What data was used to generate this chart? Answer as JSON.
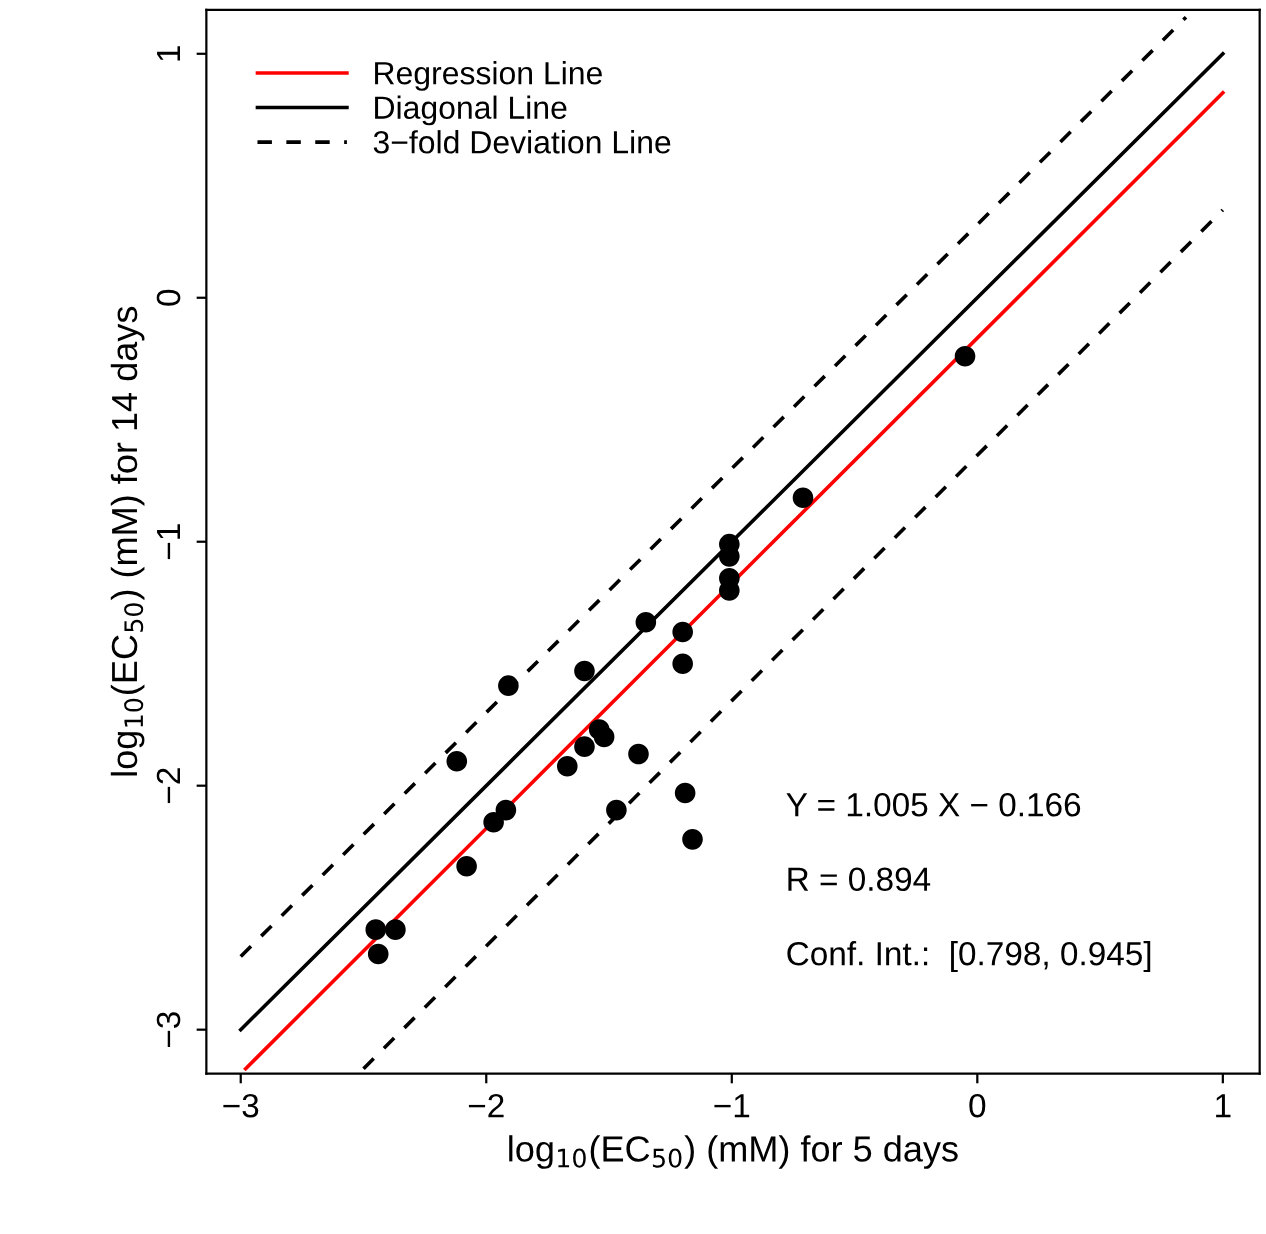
{
  "chart_data": {
    "type": "scatter",
    "xlabel": "log$_{10}$(EC$_{50}$) (mM) for 5 days",
    "ylabel": "log$_{10}$(EC$_{50}$) (mM) for 14 days",
    "xlim": [
      -3.14,
      1.15
    ],
    "ylim": [
      -3.18,
      1.18
    ],
    "xticks": [
      {
        "value": -3,
        "label": "−3"
      },
      {
        "value": -2,
        "label": "−2"
      },
      {
        "value": -1,
        "label": "−1"
      },
      0,
      1
    ],
    "yticks": [
      {
        "value": -3,
        "label": "−3"
      },
      {
        "value": -2,
        "label": "−2"
      },
      {
        "value": -1,
        "label": "−1"
      },
      0,
      1
    ],
    "grid": false,
    "legend": "top left",
    "marker": "circle",
    "series": [
      {
        "name": "Regression Line",
        "type": "line",
        "color": "#ff0000",
        "line_style": "solid",
        "marker": "none",
        "x": [
          -2.98,
          1
        ],
        "values": [
          -3.16,
          0.84
        ]
      },
      {
        "name": "Diagonal Line",
        "type": "line",
        "color": "#000000",
        "line_style": "solid",
        "marker": "none",
        "x": [
          -3,
          1
        ],
        "values": [
          -3,
          1
        ]
      },
      {
        "name": "3−fold Deviation Line",
        "type": "line",
        "color": "#000000",
        "line_style": "dashed",
        "marker": "none",
        "x": [
          -3,
          0.85
        ],
        "values": [
          -2.7,
          1.15
        ]
      },
      {
        "type": "line",
        "color": "#000000",
        "line_style": "dashed",
        "marker": "none",
        "x": [
          -2.5,
          1
        ],
        "values": [
          -3.16,
          0.36
        ]
      },
      {
        "color": "#000000",
        "x": [
          -0.05,
          -0.71,
          -1.01,
          -1.01,
          -1.01,
          -1.01,
          -1.35,
          -1.2,
          -1.2,
          -1.91,
          -1.6,
          -2.12,
          -1.54,
          -1.52,
          -1.6,
          -1.67,
          -1.38,
          -1.19,
          -1.16,
          -1.47,
          -1.92,
          -1.97,
          -2.08,
          -2.45,
          -2.37,
          -2.44
        ],
        "values": [
          -0.24,
          -0.82,
          -1.01,
          -1.06,
          -1.15,
          -1.2,
          -1.33,
          -1.37,
          -1.5,
          -1.59,
          -1.53,
          -1.9,
          -1.77,
          -1.8,
          -1.84,
          -1.92,
          -1.87,
          -2.03,
          -2.22,
          -2.1,
          -2.1,
          -2.15,
          -2.33,
          -2.59,
          -2.59,
          -2.69
        ]
      }
    ],
    "annotations": [
      "Y = 1.005 X − 0.166",
      "R = 0.894",
      "Conf. Int.:  [0.798, 0.945]"
    ]
  }
}
